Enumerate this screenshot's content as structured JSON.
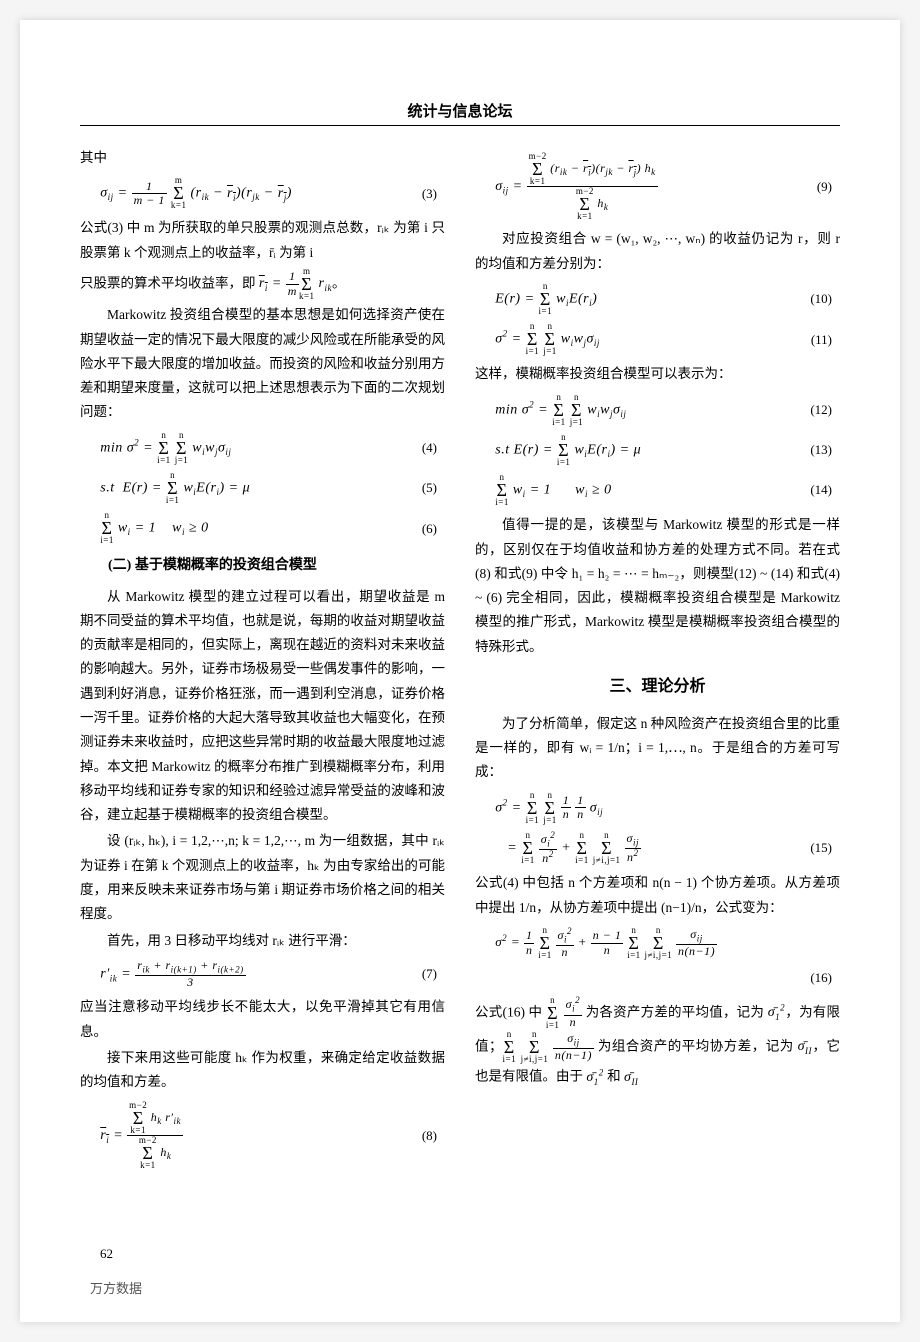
{
  "header": "统计与信息论坛",
  "page_number": "62",
  "watermark": "万方数据",
  "left": {
    "p0": "其中",
    "eq3": "σᵢⱼ = 1/(m−1) · Σₖ₌₁ᵐ (rᵢₖ − r̄ᵢ)(rⱼₖ − r̄ⱼ)",
    "eq3n": "(3)",
    "p1a": "公式(3) 中 m 为所获取的单只股票的观测点总数，rᵢₖ 为第 i 只股票第 k 个观测点上的收益率，r̄ᵢ 为第 i",
    "p1b": "只股票的算术平均收益率，即 r̄ᵢ = (1/m) Σₖ₌₁ᵐ rᵢₖ。",
    "p2": "Markowitz 投资组合模型的基本思想是如何选择资产使在期望收益一定的情况下最大限度的减少风险或在所能承受的风险水平下最大限度的增加收益。而投资的风险和收益分别用方差和期望来度量，这就可以把上述思想表示为下面的二次规划问题：",
    "eq4": "min σ² = Σᵢ₌₁ⁿ Σⱼ₌₁ⁿ wᵢwⱼσᵢⱼ",
    "eq4n": "(4)",
    "eq5": "s.t  E(r) = Σᵢ₌₁ⁿ wᵢE(rᵢ) = μ",
    "eq5n": "(5)",
    "eq6": "Σᵢ₌₁ⁿ wᵢ = 1    wᵢ ≥ 0",
    "eq6n": "(6)",
    "sec2": "(二) 基于模糊概率的投资组合模型",
    "p3": "从 Markowitz 模型的建立过程可以看出，期望收益是 m 期不同受益的算术平均值，也就是说，每期的收益对期望收益的贡献率是相同的，但实际上，离现在越近的资料对未来收益的影响越大。另外，证券市场极易受一些偶发事件的影响，一遇到利好消息，证券价格狂涨，而一遇到利空消息，证券价格一泻千里。证券价格的大起大落导致其收益也大幅变化，在预测证券未来收益时，应把这些异常时期的收益最大限度地过滤掉。本文把 Markowitz 的概率分布推广到模糊概率分布，利用移动平均线和证券专家的知识和经验过滤异常受益的波峰和波谷，建立起基于模糊概率的投资组合模型。",
    "p4": "设 (rᵢₖ, hₖ), i = 1,2,⋯,n; k = 1,2,⋯, m 为一组数据，其中 rᵢₖ 为证券 i 在第 k 个观测点上的收益率，hₖ 为由专家给出的可能度，用来反映未来证券市场与第 i 期证券市场价格之间的相关程度。",
    "p5": "首先，用 3 日移动平均线对 rᵢₖ 进行平滑：",
    "eq7": "r′ᵢₖ = (rᵢₖ + rᵢ(ₖ₊₁) + rᵢ(ₖ₊₂)) / 3",
    "eq7n": "(7)",
    "p6": "应当注意移动平均线步长不能太大，以免平滑掉其它有用信息。",
    "p7": "接下来用这些可能度 hₖ 作为权重，来确定给定收益数据的均值和方差。",
    "eq8": "r̄ᵢ = (Σₖ₌₁ᵐ⁻² hₖ r′ᵢₖ) / (Σₖ₌₁ᵐ⁻² hₖ)",
    "eq8n": "(8)"
  },
  "right": {
    "eq9": "σᵢⱼ = Σₖ₌₁ᵐ⁻² (rᵢₖ − r̄ᵢ)(rⱼₖ − r̄ⱼ)hₖ / Σₖ₌₁ᵐ⁻² hₖ",
    "eq9n": "(9)",
    "p1": "对应投资组合 w = (w₁, w₂, ⋯, wₙ) 的收益仍记为 r，则 r 的均值和方差分别为：",
    "eq10": "E(r) = Σᵢ₌₁ⁿ wᵢE(rᵢ)",
    "eq10n": "(10)",
    "eq11": "σ² = Σᵢ₌₁ⁿ Σⱼ₌₁ⁿ wᵢwⱼσᵢⱼ",
    "eq11n": "(11)",
    "p2": "这样，模糊概率投资组合模型可以表示为：",
    "eq12": "min σ² = Σᵢ₌₁ⁿ Σⱼ₌₁ⁿ wᵢwⱼσᵢⱼ",
    "eq12n": "(12)",
    "eq13": "s.t E(r) = Σᵢ₌₁ⁿ wᵢE(rᵢ) = μ",
    "eq13n": "(13)",
    "eq14": "Σᵢ₌₁ⁿ wᵢ = 1      wᵢ ≥ 0",
    "eq14n": "(14)",
    "p3": "值得一提的是，该模型与 Markowitz 模型的形式是一样的，区别仅在于均值收益和协方差的处理方式不同。若在式(8) 和式(9) 中令 h₁ = h₂ = ⋯ = hₘ₋₂，则模型(12) ~ (14) 和式(4) ~ (6) 完全相同，因此，模糊概率投资组合模型是 Markowitz 模型的推广形式，Markowitz 模型是模糊概率投资组合模型的特殊形式。",
    "sec3": "三、理论分析",
    "p4": "为了分析简单，假定这 n 种风险资产在投资组合里的比重是一样的，即有 wᵢ = 1/n；i = 1,⋯, n。于是组合的方差可写成：",
    "eq15a": "σ² = Σᵢ₌₁ⁿ Σⱼ₌₁ⁿ (1/n)(1/n) σᵢⱼ",
    "eq15b": "    = Σᵢ₌₁ⁿ σᵢ²/n² + Σᵢ₌₁ⁿ Σⱼ≠ᵢ,ⱼ₌₁ⁿ σᵢⱼ/n²",
    "eq15n": "(15)",
    "p5": "公式(4) 中包括 n 个方差项和 n(n − 1) 个协方差项。从方差项中提出 1/n，从协方差项中提出 (n−1)/n，公式变为：",
    "eq16": "σ² = (1/n) Σᵢ₌₁ⁿ σᵢ²/n + ((n−1)/n) Σᵢ₌₁ⁿ Σⱼ≠ᵢ,ⱼ₌₁ⁿ σᵢⱼ/(n(n−1))",
    "eq16n": "(16)",
    "p6": "公式(16) 中 Σᵢ₌₁ⁿ σᵢ²/n 为各资产方差的平均值，记为 σ̄₁²，为有限值；Σᵢ₌₁ⁿ Σⱼ≠ᵢ,ⱼ₌₁ⁿ σᵢⱼ/(n(n−1)) 为组合资产的平均协方差，记为 σ̄ᴵᴵ，它也是有限值。由于 σ̄₁² 和 σ̄ᴵᴵ"
  }
}
